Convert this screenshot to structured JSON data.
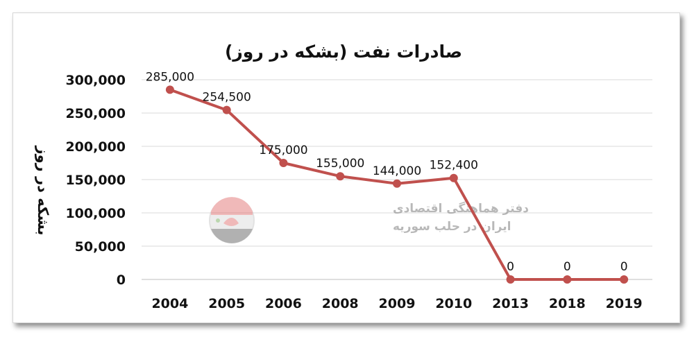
{
  "chart_data": {
    "type": "line",
    "title": "صادرات نفت (بشکه در روز)",
    "ylabel": "بشکه در روز",
    "xlabel": "",
    "categories": [
      "2004",
      "2005",
      "2006",
      "2008",
      "2009",
      "2010",
      "2013",
      "2018",
      "2019"
    ],
    "series": [
      {
        "values": [
          285000,
          254500,
          175000,
          155000,
          144000,
          152400,
          0,
          0,
          0
        ]
      }
    ],
    "data_labels": [
      "285,000",
      "254,500",
      "175,000",
      "155,000",
      "144,000",
      "152,400",
      "0",
      "0",
      "0"
    ],
    "ylim": [
      0,
      300000
    ],
    "yticks": [
      0,
      50000,
      100000,
      150000,
      200000,
      250000,
      300000
    ],
    "ytick_labels": [
      "0",
      "50,000",
      "100,000",
      "150,000",
      "200,000",
      "250,000",
      "300,000"
    ],
    "grid": true,
    "line_color": "#c0504d"
  },
  "watermark": {
    "line1": "دفتر هماهنگی اقتصادی",
    "line2": "ایران در حلب سوریه"
  }
}
